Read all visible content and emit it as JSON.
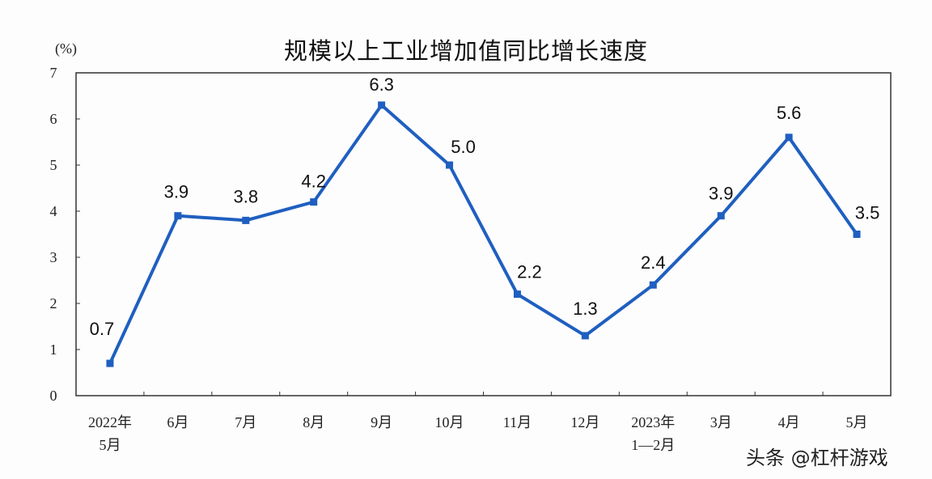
{
  "chart_data": {
    "type": "line",
    "title": "规模以上工业增加值同比增长速度",
    "ylabel": "(%)",
    "xlabel": "",
    "ylim": [
      0,
      7
    ],
    "yticks": [
      0,
      1,
      2,
      3,
      4,
      5,
      6,
      7
    ],
    "grid": false,
    "legend": null,
    "categories": [
      "2022年\n5月",
      "6月",
      "7月",
      "8月",
      "9月",
      "10月",
      "11月",
      "12月",
      "2023年\n1—2月",
      "3月",
      "4月",
      "5月"
    ],
    "series": [
      {
        "name": "规模以上工业增加值同比增长速度",
        "color": "#1f5fc0",
        "values": [
          0.7,
          3.9,
          3.8,
          4.2,
          6.3,
          5.0,
          2.2,
          1.3,
          2.4,
          3.9,
          5.6,
          3.5
        ]
      }
    ],
    "data_labels": [
      "0.7",
      "3.9",
      "3.8",
      "4.2",
      "6.3",
      "5.0",
      "2.2",
      "1.3",
      "2.4",
      "3.9",
      "5.6",
      "3.5"
    ]
  },
  "watermark": "头条 @杠杆游戏"
}
